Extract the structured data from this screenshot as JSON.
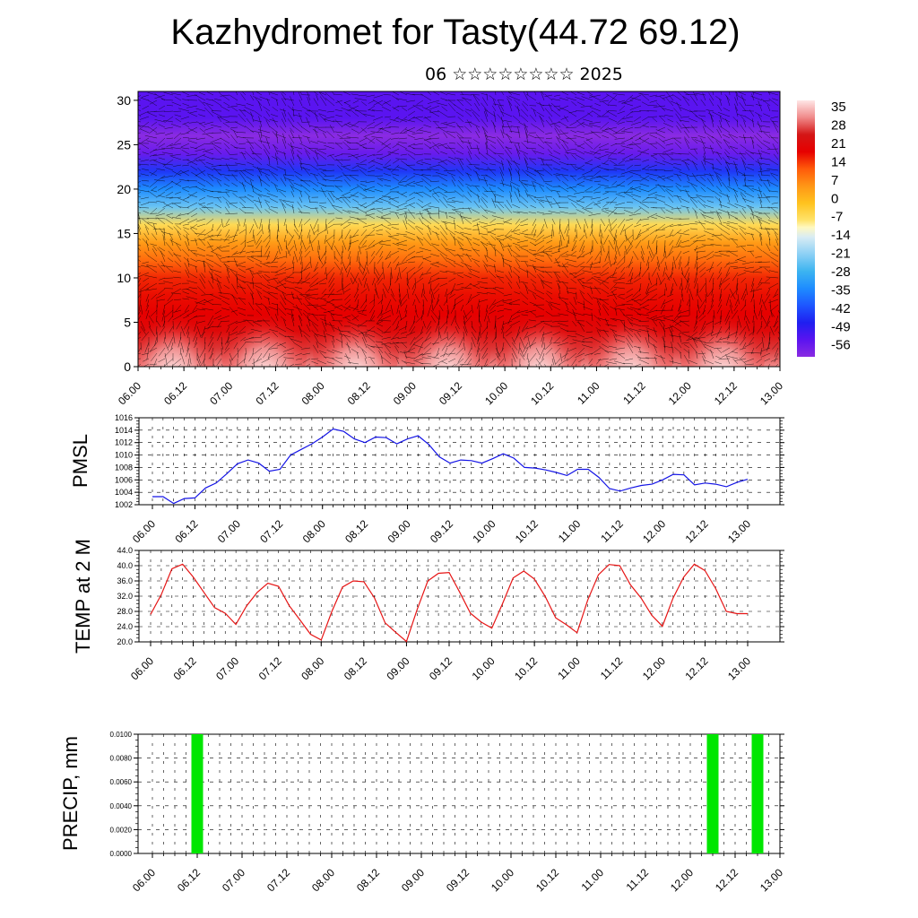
{
  "title": "Kazhydromet for Tasty(44.72 69.12)",
  "subtitle": "06 ☆☆☆☆☆☆☆☆ 2025",
  "colors": {
    "pmsl_line": "#1414e6",
    "temp_line": "#e61414",
    "precip_bar": "#00e600",
    "wind_barb": "#000000"
  },
  "chart_data": [
    {
      "type": "heatmap",
      "xticks": [
        "06.00",
        "06.12",
        "07.00",
        "07.12",
        "08.00",
        "08.12",
        "09.00",
        "09.12",
        "10.00",
        "10.12",
        "11.00",
        "11.12",
        "12.00",
        "12.12",
        "13.00"
      ],
      "yticks": [
        "0",
        "5",
        "10",
        "15",
        "20",
        "25",
        "30"
      ],
      "ylim": [
        0,
        31
      ],
      "colorbar": {
        "labels": [
          "35",
          "28",
          "21",
          "14",
          "7",
          "0",
          "-7",
          "-14",
          "-21",
          "-28",
          "-35",
          "-42",
          "-49",
          "-56"
        ],
        "range": [
          -63,
          42
        ]
      },
      "overlay": "wind barbs",
      "temperature_profile": {
        "levels": [
          0,
          2,
          4,
          6,
          8,
          10,
          12,
          14,
          16,
          18,
          20,
          22,
          24,
          26,
          28,
          31
        ],
        "values": [
          35,
          30,
          24,
          21,
          20,
          18,
          12,
          6,
          -5,
          -24,
          -35,
          -46,
          -58,
          -64,
          -56,
          -56
        ]
      }
    },
    {
      "type": "line",
      "ylabel": "PMSL",
      "xticks": [
        "06.00",
        "06.12",
        "07.00",
        "07.12",
        "08.00",
        "08.12",
        "09.00",
        "09.12",
        "10.00",
        "10.12",
        "11.00",
        "11.12",
        "12.00",
        "12.12",
        "13.00"
      ],
      "yticks": [
        "1002",
        "1004",
        "1006",
        "1008",
        "1010",
        "1012",
        "1014",
        "1016"
      ],
      "ylim": [
        1002,
        1016
      ],
      "series": [
        {
          "values": [
            1003.3,
            1003.3,
            1002.2,
            1003.0,
            1003.1,
            1004.7,
            1005.5,
            1007.0,
            1008.6,
            1009.2,
            1008.7,
            1007.4,
            1007.7,
            1010.0,
            1010.9,
            1011.8,
            1012.9,
            1014.2,
            1013.8,
            1012.6,
            1012.0,
            1012.9,
            1012.8,
            1011.8,
            1012.6,
            1013.1,
            1011.7,
            1009.7,
            1008.7,
            1009.2,
            1009.1,
            1008.7,
            1009.4,
            1010.2,
            1009.5,
            1008.0,
            1007.9,
            1007.6,
            1007.2,
            1006.7,
            1007.7,
            1007.7,
            1006.4,
            1004.6,
            1004.2,
            1004.7,
            1005.1,
            1005.3,
            1006.0,
            1006.9,
            1006.8,
            1005.2,
            1005.5,
            1005.3,
            1004.9,
            1005.6,
            1006.1
          ]
        }
      ]
    },
    {
      "type": "line",
      "ylabel": "TEMP at 2 M",
      "xticks": [
        "06.00",
        "06.12",
        "07.00",
        "07.12",
        "08.00",
        "08.12",
        "09.00",
        "09.12",
        "10.00",
        "10.12",
        "11.00",
        "11.12",
        "12.00",
        "12.12",
        "13.00"
      ],
      "yticks": [
        "20.0",
        "24.0",
        "28.0",
        "32.0",
        "36.0",
        "40.0",
        "44.0"
      ],
      "ylim": [
        20,
        44
      ],
      "series": [
        {
          "values": [
            27.2,
            32.4,
            39.2,
            40.4,
            37.0,
            33.0,
            29.0,
            27.5,
            24.6,
            29.4,
            33.0,
            35.4,
            34.6,
            29.5,
            25.8,
            22.0,
            20.5,
            28.0,
            34.4,
            36.0,
            35.8,
            31.5,
            25.0,
            22.5,
            20.1,
            28.5,
            36.0,
            38.0,
            38.2,
            33.0,
            27.5,
            25.2,
            23.6,
            30.0,
            36.8,
            38.6,
            36.5,
            32.0,
            26.3,
            24.5,
            22.4,
            31.0,
            37.6,
            40.3,
            40.0,
            35.0,
            31.5,
            27.0,
            24.1,
            31.5,
            37.0,
            40.4,
            38.7,
            34.0,
            28.0,
            27.4,
            27.4
          ]
        }
      ]
    },
    {
      "type": "bar",
      "ylabel": "PRECIP, mm",
      "xticks": [
        "06.00",
        "06.12",
        "07.00",
        "07.12",
        "08.00",
        "08.12",
        "09.00",
        "09.12",
        "10.00",
        "10.12",
        "11.00",
        "11.12",
        "12.00",
        "12.12",
        "13.00"
      ],
      "yticks": [
        "0.0000",
        "0.0020",
        "0.0040",
        "0.0060",
        "0.0080",
        "0.0100"
      ],
      "ylim": [
        0,
        0.01
      ],
      "bars": [
        {
          "time": "06.12",
          "value": 0.01
        },
        {
          "time": "12.06",
          "value": 0.01
        },
        {
          "time": "12.18",
          "value": 0.01
        }
      ]
    }
  ]
}
